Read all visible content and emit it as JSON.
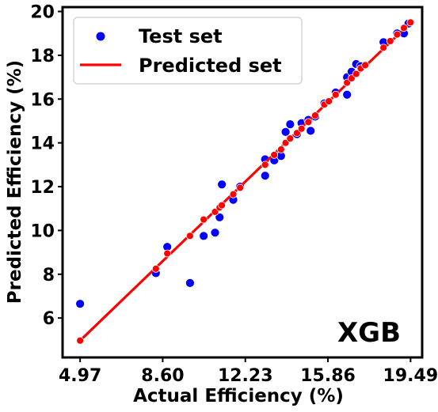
{
  "chart_data": {
    "type": "scatter",
    "xlabel": "Actual Efficiency (%)",
    "ylabel": "Predicted Efficiency (%)",
    "annotation": "XGB",
    "xlim": [
      4.2,
      20.0
    ],
    "ylim": [
      4.2,
      20.2
    ],
    "x_ticks": [
      "4.97",
      "8.60",
      "12.23",
      "15.86",
      "19.49"
    ],
    "x_tick_values": [
      4.97,
      8.6,
      12.23,
      15.86,
      19.49
    ],
    "y_ticks": [
      "6",
      "8",
      "10",
      "12",
      "14",
      "16",
      "18",
      "20"
    ],
    "y_tick_values": [
      6,
      8,
      10,
      12,
      14,
      16,
      18,
      20
    ],
    "legend_position": "upper-left",
    "series": [
      {
        "name": "Test set",
        "kind": "scatter",
        "color": "#0000ff",
        "points": [
          [
            4.97,
            6.65
          ],
          [
            8.3,
            8.05
          ],
          [
            8.8,
            9.25
          ],
          [
            9.8,
            7.6
          ],
          [
            10.4,
            9.75
          ],
          [
            10.9,
            9.9
          ],
          [
            11.1,
            10.6
          ],
          [
            11.2,
            12.1
          ],
          [
            11.7,
            11.4
          ],
          [
            12.0,
            12.0
          ],
          [
            13.1,
            13.25
          ],
          [
            13.1,
            12.5
          ],
          [
            13.5,
            13.2
          ],
          [
            13.8,
            13.4
          ],
          [
            14.0,
            14.5
          ],
          [
            14.2,
            14.85
          ],
          [
            14.5,
            14.4
          ],
          [
            14.7,
            14.9
          ],
          [
            15.0,
            15.05
          ],
          [
            15.1,
            14.55
          ],
          [
            15.3,
            15.2
          ],
          [
            15.7,
            15.8
          ],
          [
            16.2,
            16.3
          ],
          [
            16.7,
            16.2
          ],
          [
            16.7,
            17.0
          ],
          [
            16.9,
            17.25
          ],
          [
            17.1,
            17.6
          ],
          [
            17.3,
            17.5
          ],
          [
            18.3,
            18.6
          ],
          [
            18.9,
            19.0
          ],
          [
            19.2,
            19.0
          ],
          [
            19.4,
            19.45
          ]
        ]
      },
      {
        "name": "Predicted set",
        "kind": "line",
        "color": "#ff0000",
        "line": [
          [
            4.97,
            4.97
          ],
          [
            19.49,
            19.49
          ]
        ],
        "points": [
          [
            4.97,
            4.97
          ],
          [
            8.3,
            8.25
          ],
          [
            8.8,
            8.95
          ],
          [
            9.8,
            9.75
          ],
          [
            10.4,
            10.5
          ],
          [
            10.9,
            10.85
          ],
          [
            11.1,
            11.05
          ],
          [
            11.2,
            11.15
          ],
          [
            11.7,
            11.65
          ],
          [
            12.0,
            11.95
          ],
          [
            13.1,
            13.0
          ],
          [
            13.5,
            13.45
          ],
          [
            13.8,
            13.7
          ],
          [
            14.0,
            14.0
          ],
          [
            14.2,
            14.2
          ],
          [
            14.5,
            14.45
          ],
          [
            14.7,
            14.65
          ],
          [
            15.0,
            14.95
          ],
          [
            15.3,
            15.25
          ],
          [
            15.7,
            15.75
          ],
          [
            15.9,
            15.9
          ],
          [
            16.2,
            16.2
          ],
          [
            16.7,
            16.75
          ],
          [
            16.9,
            16.95
          ],
          [
            17.1,
            17.15
          ],
          [
            17.3,
            17.4
          ],
          [
            17.5,
            17.55
          ],
          [
            18.3,
            18.35
          ],
          [
            18.6,
            18.65
          ],
          [
            18.9,
            18.95
          ],
          [
            19.2,
            19.25
          ],
          [
            19.49,
            19.5
          ]
        ]
      }
    ]
  }
}
